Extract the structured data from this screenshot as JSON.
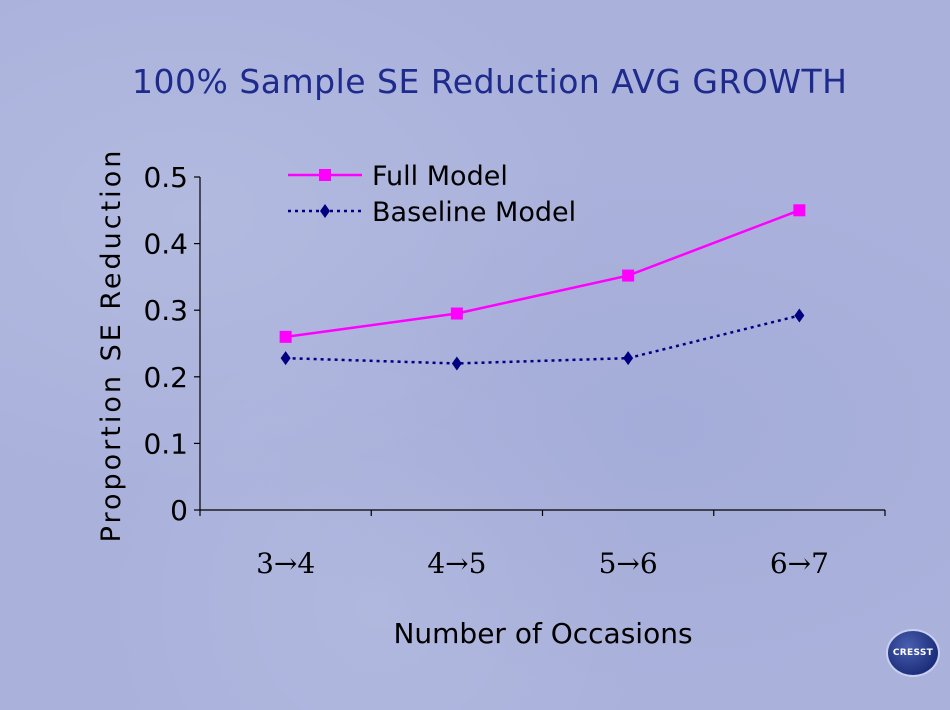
{
  "title": "100% Sample SE Reduction AVG GROWTH",
  "logo_text": "CRESST",
  "chart_data": {
    "type": "line",
    "title": "100% Sample SE Reduction AVG GROWTH",
    "xlabel": "Number of Occasions",
    "ylabel": "Proportion SE Reduction",
    "categories": [
      "3→4",
      "4→5",
      "5→6",
      "6→7"
    ],
    "ylim": [
      0,
      0.5
    ],
    "yticks": [
      "0",
      "0.1",
      "0.2",
      "0.3",
      "0.4",
      "0.5"
    ],
    "grid": false,
    "legend_position": "top-left",
    "series": [
      {
        "name": "Full Model",
        "values": [
          0.26,
          0.295,
          0.352,
          0.45
        ],
        "color": "#ff00ff",
        "marker": "square",
        "line": "solid"
      },
      {
        "name": "Baseline Model",
        "values": [
          0.228,
          0.22,
          0.228,
          0.292
        ],
        "color": "#000080",
        "marker": "diamond",
        "line": "dotted"
      }
    ]
  }
}
